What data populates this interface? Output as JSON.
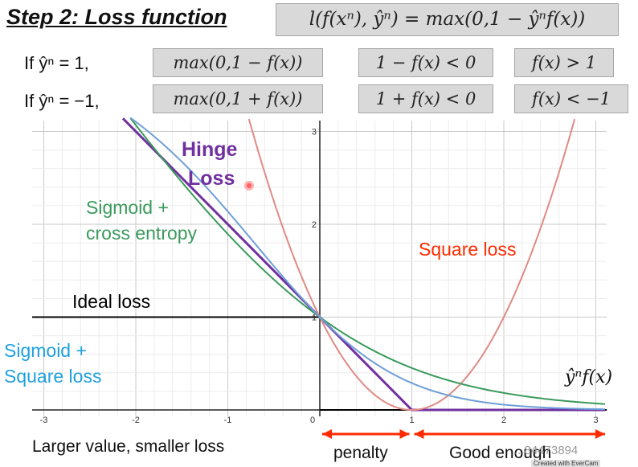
{
  "header": {
    "title": "Step 2: Loss function",
    "loss_def": "l(f(xⁿ), ŷⁿ) = max(0,1 − ŷⁿf(x))"
  },
  "cases": [
    {
      "condition": "If ŷⁿ = 1,",
      "max_expr": "max(0,1 − f(x))",
      "ineq": "1 − f(x) < 0",
      "result": "f(x) > 1"
    },
    {
      "condition": "If ŷⁿ = −1,",
      "max_expr": "max(0,1 + f(x))",
      "ineq": "1 + f(x) < 0",
      "result": "f(x) < −1"
    }
  ],
  "labels": {
    "hinge": "Hinge\nLoss",
    "hinge_line1": "Hinge",
    "hinge_line2": "Loss",
    "sigmoid_ce_line1": "Sigmoid +",
    "sigmoid_ce_line2": "cross entropy",
    "square_loss": "Square loss",
    "ideal_loss": "Ideal loss",
    "sigmoid_sq_line1": "Sigmoid +",
    "sigmoid_sq_line2": "Square loss",
    "x_axis": "ŷⁿf(x)",
    "bottom_left": "Larger value, smaller loss",
    "penalty": "penalty",
    "good_enough": "Good enough"
  },
  "watermark": "...84473894",
  "evercam": "Created with EverCam",
  "colors": {
    "hinge": "#7030a0",
    "sigmoid_ce": "#3a9a5c",
    "square": "#e08a84",
    "sigmoid_sq": "#6f9fd8",
    "ideal": "#000000",
    "arrow": "#ff2a00",
    "square_label": "#ff2a00",
    "sigmoid_sq_label": "#1fa0e0",
    "sigmoid_ce_label": "#3a9a5c",
    "hinge_label": "#7030a0"
  },
  "chart_data": {
    "type": "line",
    "xlim": [
      -3.1,
      3.1
    ],
    "ylim": [
      0,
      3.1
    ],
    "x_ticks": [
      -3,
      -2,
      -1,
      0,
      1,
      2,
      3
    ],
    "x_tick_labels": [
      "-3",
      "-2",
      "-1",
      "0",
      "1",
      "2",
      "3"
    ],
    "y_ticks": [
      1,
      2,
      3
    ],
    "y_tick_labels": [
      "1",
      "2",
      "3"
    ],
    "grid": true,
    "series": [
      {
        "name": "Ideal loss",
        "function": "1 if x < 0 else 0",
        "color": "#000000"
      },
      {
        "name": "Hinge Loss",
        "function": "max(0, 1 - x)",
        "color": "#7030a0"
      },
      {
        "name": "Square loss",
        "function": "(x - 1)^2",
        "color": "#e08a84"
      },
      {
        "name": "Sigmoid + cross entropy",
        "function": "ln(1 + exp(-x)) / ln(2)",
        "color": "#3a9a5c"
      },
      {
        "name": "Sigmoid + Square loss",
        "function": "(sigmoid(x) - 1)^2 * 4",
        "color": "#6f9fd8"
      }
    ]
  }
}
